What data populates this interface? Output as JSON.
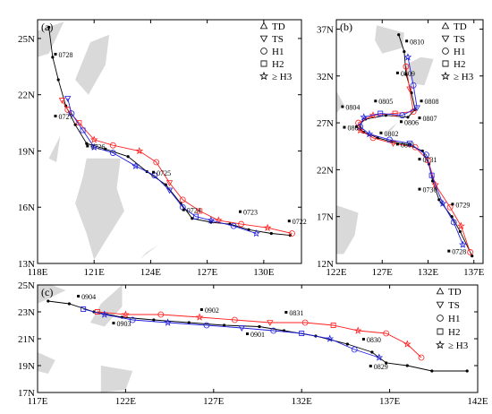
{
  "chart_data": [
    {
      "type": "scatter",
      "panel": "(a)",
      "xlim": [
        118,
        132
      ],
      "ylim": [
        13,
        26
      ],
      "xticks": [
        {
          "v": 118,
          "label": "118E"
        },
        {
          "v": 121,
          "label": "121E"
        },
        {
          "v": 124,
          "label": "124E"
        },
        {
          "v": 127,
          "label": "127E"
        },
        {
          "v": 130,
          "label": "130E"
        }
      ],
      "yticks": [
        {
          "v": 13,
          "label": "13N"
        },
        {
          "v": 16,
          "label": "16N"
        },
        {
          "v": 19,
          "label": "19N"
        },
        {
          "v": 22,
          "label": "22N"
        },
        {
          "v": 25,
          "label": "25N"
        }
      ],
      "legend": {
        "position": "top-right",
        "entries": [
          {
            "symbol": "triangle-up",
            "label": "TD"
          },
          {
            "symbol": "triangle-down",
            "label": "TS"
          },
          {
            "symbol": "circle",
            "label": "H1"
          },
          {
            "symbol": "square",
            "label": "H2"
          },
          {
            "symbol": "star",
            "label": "≥ H3"
          }
        ]
      },
      "series": [
        {
          "color": "#000000",
          "points": [
            [
              131.4,
              14.5
            ],
            [
              130.4,
              14.6
            ],
            [
              129.2,
              14.8
            ],
            [
              128.2,
              15.1
            ],
            [
              127.2,
              15.2
            ],
            [
              126.2,
              15.4
            ],
            [
              125.6,
              16.2
            ],
            [
              124.8,
              17.2
            ],
            [
              123.8,
              17.9
            ],
            [
              122.8,
              18.7
            ],
            [
              121.6,
              19.1
            ],
            [
              120.6,
              19.4
            ],
            [
              120.0,
              20.4
            ],
            [
              119.5,
              21.4
            ],
            [
              119.1,
              22.8
            ],
            [
              118.8,
              24.0
            ],
            [
              118.6,
              25.6
            ]
          ]
        },
        {
          "color": "#ff2020",
          "points": [
            [
              131.5,
              14.6
            ],
            [
              130.2,
              14.9
            ],
            [
              128.8,
              15.1
            ],
            [
              127.6,
              15.3
            ],
            [
              126.6,
              15.8
            ],
            [
              125.7,
              16.4
            ],
            [
              125.0,
              17.3
            ],
            [
              124.3,
              18.4
            ],
            [
              123.4,
              19.0
            ],
            [
              122.0,
              19.3
            ],
            [
              121.0,
              19.6
            ],
            [
              120.2,
              20.5
            ],
            [
              119.6,
              21.2
            ],
            [
              119.3,
              21.7
            ]
          ]
        },
        {
          "color": "#2020e0",
          "points": [
            [
              129.6,
              14.6
            ],
            [
              128.4,
              15.0
            ],
            [
              127.2,
              15.3
            ],
            [
              126.4,
              15.5
            ],
            [
              125.7,
              16.0
            ],
            [
              125.0,
              16.9
            ],
            [
              124.2,
              17.7
            ],
            [
              123.2,
              18.2
            ],
            [
              122.0,
              18.9
            ],
            [
              121.0,
              19.2
            ],
            [
              120.4,
              20.1
            ],
            [
              119.8,
              21.0
            ],
            [
              119.6,
              21.8
            ]
          ]
        }
      ],
      "annotations": [
        {
          "x": 131.8,
          "y": 15.0,
          "text": "0722"
        },
        {
          "x": 129.2,
          "y": 15.5,
          "text": "0723"
        },
        {
          "x": 126.2,
          "y": 15.6,
          "text": "0724"
        },
        {
          "x": 124.6,
          "y": 17.6,
          "text": "0725"
        },
        {
          "x": 121.1,
          "y": 19.0,
          "text": "0726"
        },
        {
          "x": 119.4,
          "y": 20.6,
          "text": "0727"
        },
        {
          "x": 119.4,
          "y": 23.9,
          "text": "0728"
        }
      ]
    },
    {
      "type": "scatter",
      "panel": "(b)",
      "xlim": [
        122,
        138
      ],
      "ylim": [
        12,
        38
      ],
      "xticks": [
        {
          "v": 122,
          "label": "122E"
        },
        {
          "v": 127,
          "label": "127E"
        },
        {
          "v": 132,
          "label": "132E"
        },
        {
          "v": 137,
          "label": "137E"
        }
      ],
      "yticks": [
        {
          "v": 12,
          "label": "12N"
        },
        {
          "v": 17,
          "label": "17N"
        },
        {
          "v": 22,
          "label": "22N"
        },
        {
          "v": 27,
          "label": "27N"
        },
        {
          "v": 32,
          "label": "32N"
        },
        {
          "v": 37,
          "label": "37N"
        }
      ],
      "legend": {
        "position": "top-right",
        "entries": [
          {
            "symbol": "triangle-up",
            "label": "TD"
          },
          {
            "symbol": "triangle-down",
            "label": "TS"
          },
          {
            "symbol": "circle",
            "label": "H1"
          },
          {
            "symbol": "square",
            "label": "H2"
          },
          {
            "symbol": "star",
            "label": "≥ H3"
          }
        ]
      },
      "series": [
        {
          "color": "#000000",
          "points": [
            [
              136.8,
              12.8
            ],
            [
              135.5,
              15.4
            ],
            [
              134.6,
              17.0
            ],
            [
              133.2,
              18.8
            ],
            [
              132.5,
              20.8
            ],
            [
              132.1,
              22.6
            ],
            [
              131.4,
              24.0
            ],
            [
              130.0,
              24.6
            ],
            [
              128.0,
              25.0
            ],
            [
              126.5,
              25.4
            ],
            [
              125.0,
              26.0
            ],
            [
              124.2,
              26.6
            ],
            [
              125.2,
              27.4
            ],
            [
              127.4,
              27.8
            ],
            [
              129.8,
              27.6
            ],
            [
              130.6,
              28.4
            ],
            [
              130.2,
              30.2
            ],
            [
              129.6,
              32.2
            ],
            [
              129.4,
              34.6
            ],
            [
              128.8,
              36.4
            ]
          ]
        },
        {
          "color": "#ff2020",
          "points": [
            [
              136.6,
              13.2
            ],
            [
              135.6,
              16.0
            ],
            [
              134.4,
              18.0
            ],
            [
              132.8,
              20.4
            ],
            [
              132.0,
              23.0
            ],
            [
              130.6,
              24.4
            ],
            [
              128.2,
              24.8
            ],
            [
              126.0,
              25.4
            ],
            [
              124.6,
              26.2
            ],
            [
              124.4,
              27.0
            ],
            [
              126.0,
              27.8
            ],
            [
              128.4,
              28.0
            ],
            [
              130.4,
              28.2
            ],
            [
              130.0,
              30.6
            ],
            [
              129.6,
              33.0
            ]
          ]
        },
        {
          "color": "#2020e0",
          "points": [
            [
              135.8,
              14.0
            ],
            [
              134.8,
              16.4
            ],
            [
              133.6,
              18.4
            ],
            [
              132.4,
              21.4
            ],
            [
              131.8,
              23.6
            ],
            [
              130.0,
              24.8
            ],
            [
              127.8,
              25.2
            ],
            [
              125.6,
              25.8
            ],
            [
              124.6,
              26.6
            ],
            [
              125.0,
              27.6
            ],
            [
              126.8,
              28.0
            ],
            [
              129.2,
              27.8
            ],
            [
              130.8,
              28.6
            ],
            [
              130.4,
              31.0
            ],
            [
              129.8,
              34.0
            ]
          ]
        }
      ],
      "annotations": [
        {
          "x": 135.2,
          "y": 12.8,
          "text": "0728"
        },
        {
          "x": 135.6,
          "y": 17.8,
          "text": "0729"
        },
        {
          "x": 132.0,
          "y": 19.4,
          "text": "0730"
        },
        {
          "x": 132.0,
          "y": 22.6,
          "text": "0731"
        },
        {
          "x": 129.6,
          "y": 24.2,
          "text": "0801"
        },
        {
          "x": 127.8,
          "y": 25.4,
          "text": "0802"
        },
        {
          "x": 123.8,
          "y": 26.0,
          "text": "0803"
        },
        {
          "x": 123.6,
          "y": 28.2,
          "text": "0804"
        },
        {
          "x": 127.2,
          "y": 28.8,
          "text": "0805"
        },
        {
          "x": 130.0,
          "y": 26.6,
          "text": "0806"
        },
        {
          "x": 132.0,
          "y": 27.0,
          "text": "0807"
        },
        {
          "x": 132.2,
          "y": 28.8,
          "text": "0808"
        },
        {
          "x": 129.6,
          "y": 31.8,
          "text": "0809"
        },
        {
          "x": 130.6,
          "y": 35.2,
          "text": "0810"
        }
      ]
    },
    {
      "type": "scatter",
      "panel": "(c)",
      "xlim": [
        117,
        142
      ],
      "ylim": [
        17,
        25
      ],
      "xticks": [
        {
          "v": 117,
          "label": "117E"
        },
        {
          "v": 122,
          "label": "122E"
        },
        {
          "v": 127,
          "label": "127E"
        },
        {
          "v": 132,
          "label": "132E"
        },
        {
          "v": 137,
          "label": "137E"
        },
        {
          "v": 142,
          "label": "142E"
        }
      ],
      "yticks": [
        {
          "v": 17,
          "label": "17N"
        },
        {
          "v": 19,
          "label": "19N"
        },
        {
          "v": 21,
          "label": "21N"
        },
        {
          "v": 23,
          "label": "23N"
        },
        {
          "v": 25,
          "label": "25N"
        }
      ],
      "legend": {
        "position": "top-right",
        "entries": [
          {
            "symbol": "triangle-up",
            "label": "TD"
          },
          {
            "symbol": "triangle-down",
            "label": "TS"
          },
          {
            "symbol": "circle",
            "label": "H1"
          },
          {
            "symbol": "square",
            "label": "H2"
          },
          {
            "symbol": "star",
            "label": "≥ H3"
          }
        ]
      },
      "series": [
        {
          "color": "#000000",
          "points": [
            [
              141.4,
              18.6
            ],
            [
              139.4,
              18.6
            ],
            [
              138.0,
              19.0
            ],
            [
              136.8,
              19.2
            ],
            [
              136.0,
              20.0
            ],
            [
              134.6,
              20.6
            ],
            [
              132.8,
              21.2
            ],
            [
              131.0,
              21.6
            ],
            [
              129.6,
              21.9
            ],
            [
              127.6,
              22.0
            ],
            [
              125.6,
              22.2
            ],
            [
              123.6,
              22.4
            ],
            [
              121.8,
              22.6
            ],
            [
              120.2,
              23.0
            ],
            [
              118.8,
              23.6
            ],
            [
              117.6,
              23.8
            ]
          ]
        },
        {
          "color": "#ff2020",
          "points": [
            [
              138.8,
              19.6
            ],
            [
              138.0,
              20.6
            ],
            [
              136.8,
              21.4
            ],
            [
              135.2,
              21.6
            ],
            [
              133.8,
              22.0
            ],
            [
              132.2,
              22.2
            ],
            [
              130.2,
              22.2
            ],
            [
              128.2,
              22.4
            ],
            [
              126.2,
              22.6
            ],
            [
              124.0,
              22.8
            ],
            [
              122.0,
              22.8
            ],
            [
              120.4,
              23.0
            ]
          ]
        },
        {
          "color": "#2020e0",
          "points": [
            [
              136.4,
              19.6
            ],
            [
              135.0,
              20.2
            ],
            [
              133.6,
              21.0
            ],
            [
              132.0,
              21.4
            ],
            [
              130.4,
              21.6
            ],
            [
              128.6,
              21.8
            ],
            [
              126.6,
              22.0
            ],
            [
              124.4,
              22.2
            ],
            [
              122.4,
              22.4
            ],
            [
              120.8,
              22.8
            ],
            [
              119.6,
              23.2
            ]
          ]
        }
      ],
      "annotations": [
        {
          "x": 119.8,
          "y": 23.8,
          "text": "0904"
        },
        {
          "x": 121.8,
          "y": 21.8,
          "text": "0903"
        },
        {
          "x": 126.8,
          "y": 22.8,
          "text": "0902"
        },
        {
          "x": 129.4,
          "y": 21.0,
          "text": "0901"
        },
        {
          "x": 131.6,
          "y": 22.6,
          "text": "0831"
        },
        {
          "x": 136.0,
          "y": 20.6,
          "text": "0830"
        },
        {
          "x": 136.4,
          "y": 18.6,
          "text": "0829"
        }
      ]
    }
  ]
}
